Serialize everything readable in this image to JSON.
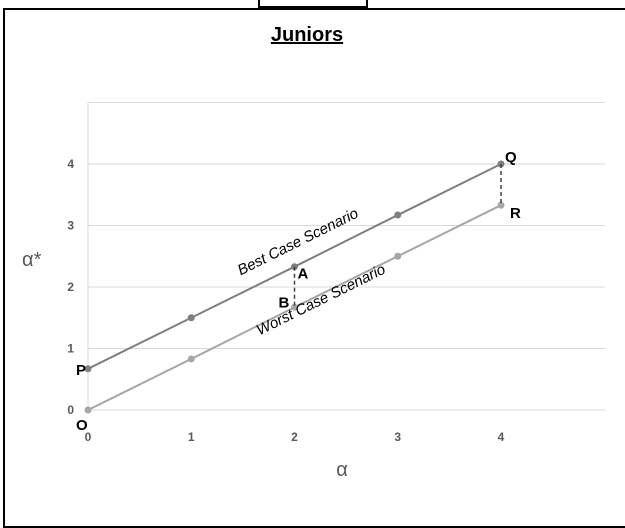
{
  "chart_data": {
    "type": "line",
    "title": "Juniors",
    "xlabel": "α",
    "ylabel": "α*",
    "xlim": [
      0,
      5
    ],
    "ylim": [
      0,
      5
    ],
    "x_ticks": [
      "0",
      "1",
      "2",
      "3",
      "4"
    ],
    "y_ticks": [
      "0",
      "1",
      "2",
      "3",
      "4"
    ],
    "grid": true,
    "colors": {
      "best": "#7f7f7f",
      "worst": "#a6a6a6",
      "grid": "#d9d9d9",
      "connector": "#404040"
    },
    "series": [
      {
        "label_text": "Best Case Scenario",
        "x": [
          0,
          1,
          2,
          3,
          4
        ],
        "y": [
          0.67,
          1.5,
          2.33,
          3.17,
          4.0
        ]
      },
      {
        "label_text": "Worst Case Scenario",
        "x": [
          0,
          1,
          2,
          3,
          4
        ],
        "y": [
          0.0,
          0.83,
          1.67,
          2.5,
          3.33
        ]
      }
    ],
    "connectors": [
      {
        "x": 2,
        "y_top": 2.33,
        "y_bottom": 1.67
      },
      {
        "x": 4,
        "y_top": 4.0,
        "y_bottom": 3.33
      }
    ],
    "point_labels": [
      {
        "text": "P",
        "x": 0,
        "y": 0.67
      },
      {
        "text": "O",
        "x": 0,
        "y": 0.0
      },
      {
        "text": "A",
        "x": 2,
        "y": 2.33
      },
      {
        "text": "B",
        "x": 2,
        "y": 1.67
      },
      {
        "text": "Q",
        "x": 4,
        "y": 4.0
      },
      {
        "text": "R",
        "x": 4,
        "y": 3.33
      }
    ]
  }
}
